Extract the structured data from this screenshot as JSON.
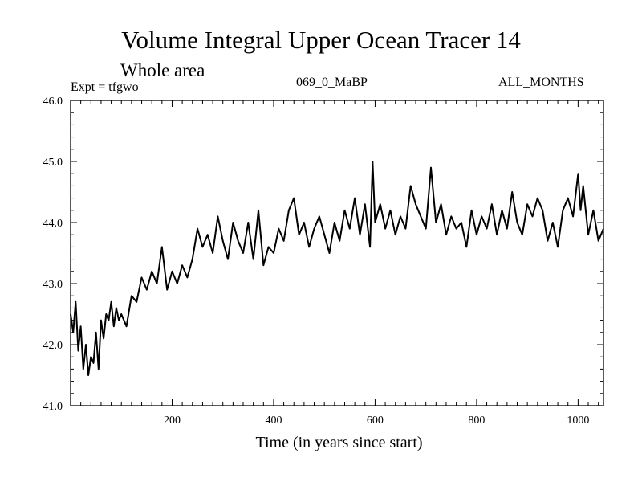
{
  "chart_data": {
    "type": "line",
    "title": "Volume Integral Upper Ocean Tracer 14",
    "subtitle": "Whole area",
    "experiment_label": "Expt = tfgwo",
    "run_label": "069_0_MaBP",
    "months_label": "ALL_MONTHS",
    "xlabel": "Time (in years since start)",
    "ylabel": "",
    "xlim": [
      0,
      1050
    ],
    "ylim": [
      41.0,
      46.0
    ],
    "xticks": [
      200,
      400,
      600,
      800,
      1000
    ],
    "xtick_labels": [
      "200",
      "400",
      "600",
      "800",
      "1000"
    ],
    "yticks": [
      41.0,
      42.0,
      43.0,
      44.0,
      45.0,
      46.0
    ],
    "ytick_labels": [
      "41.0",
      "42.0",
      "43.0",
      "44.0",
      "45.0",
      "46.0"
    ],
    "series": [
      {
        "name": "Tracer 14 volume integral",
        "color": "#000000",
        "x": [
          0,
          5,
          10,
          15,
          20,
          25,
          30,
          35,
          40,
          45,
          50,
          55,
          60,
          65,
          70,
          75,
          80,
          85,
          90,
          95,
          100,
          110,
          120,
          130,
          140,
          150,
          160,
          170,
          180,
          190,
          200,
          210,
          220,
          230,
          240,
          250,
          260,
          270,
          280,
          290,
          300,
          310,
          320,
          330,
          340,
          350,
          360,
          370,
          380,
          390,
          400,
          410,
          420,
          430,
          440,
          450,
          460,
          470,
          480,
          490,
          500,
          510,
          520,
          530,
          540,
          550,
          560,
          570,
          580,
          590,
          595,
          600,
          610,
          620,
          630,
          640,
          650,
          660,
          670,
          680,
          690,
          700,
          710,
          720,
          730,
          740,
          750,
          760,
          770,
          780,
          790,
          800,
          810,
          820,
          830,
          840,
          850,
          860,
          870,
          880,
          890,
          900,
          910,
          920,
          930,
          940,
          950,
          960,
          970,
          980,
          990,
          1000,
          1005,
          1010,
          1020,
          1030,
          1040,
          1050
        ],
        "values": [
          42.5,
          42.2,
          42.7,
          41.9,
          42.3,
          41.6,
          42.0,
          41.5,
          41.8,
          41.7,
          42.2,
          41.6,
          42.4,
          42.1,
          42.5,
          42.4,
          42.7,
          42.3,
          42.6,
          42.4,
          42.5,
          42.3,
          42.8,
          42.7,
          43.1,
          42.9,
          43.2,
          43.0,
          43.6,
          42.9,
          43.2,
          43.0,
          43.3,
          43.1,
          43.4,
          43.9,
          43.6,
          43.8,
          43.5,
          44.1,
          43.7,
          43.4,
          44.0,
          43.7,
          43.5,
          44.0,
          43.4,
          44.2,
          43.3,
          43.6,
          43.5,
          43.9,
          43.7,
          44.2,
          44.4,
          43.8,
          44.0,
          43.6,
          43.9,
          44.1,
          43.8,
          43.5,
          44.0,
          43.7,
          44.2,
          43.9,
          44.4,
          43.8,
          44.3,
          43.6,
          45.0,
          44.0,
          44.3,
          43.9,
          44.2,
          43.8,
          44.1,
          43.9,
          44.6,
          44.3,
          44.1,
          43.9,
          44.9,
          44.0,
          44.3,
          43.8,
          44.1,
          43.9,
          44.0,
          43.6,
          44.2,
          43.8,
          44.1,
          43.9,
          44.3,
          43.8,
          44.2,
          43.9,
          44.5,
          44.0,
          43.8,
          44.3,
          44.1,
          44.4,
          44.2,
          43.7,
          44.0,
          43.6,
          44.2,
          44.4,
          44.1,
          44.8,
          44.2,
          44.6,
          43.8,
          44.2,
          43.7,
          43.9
        ]
      }
    ]
  }
}
